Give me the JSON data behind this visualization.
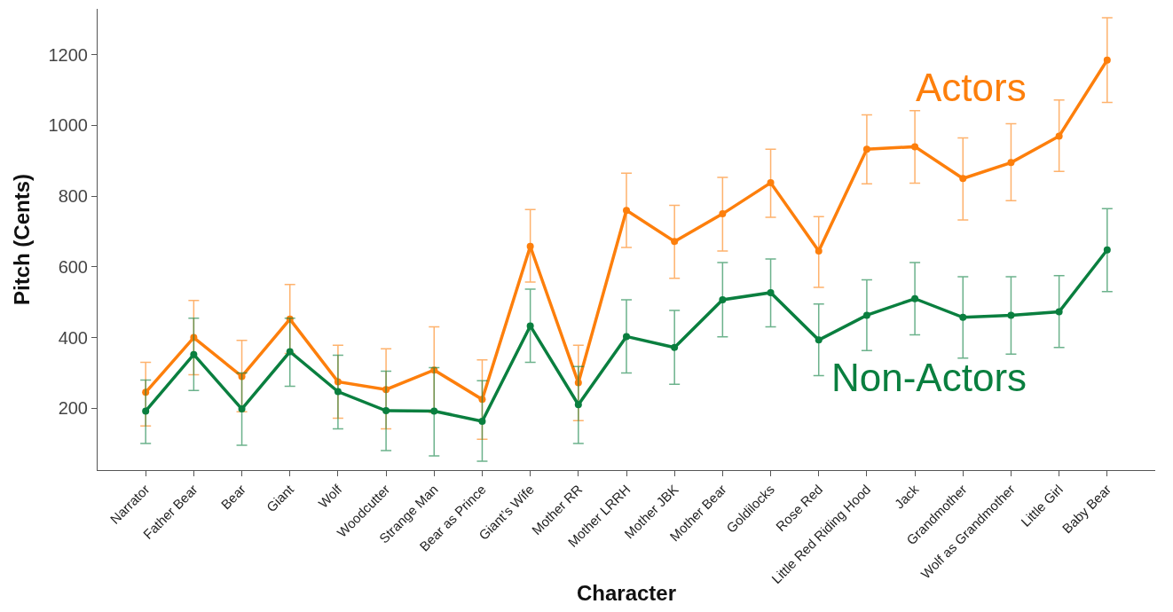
{
  "chart_data": {
    "type": "line",
    "xlabel": "Character",
    "ylabel": "Pitch (Cents)",
    "categories": [
      "Narrator",
      "Father Bear",
      "Bear",
      "Giant",
      "Wolf",
      "Woodcutter",
      "Strange Man",
      "Bear as Prince",
      "Giant’s Wife",
      "Mother RR",
      "Mother LRRH",
      "Mother JBK",
      "Mother Bear",
      "Goldilocks",
      "Rose Red",
      "Little Red Riding Hood",
      "Jack",
      "Grandmother",
      "Wolf as Grandmother",
      "Little Girl",
      "Baby Bear"
    ],
    "series": [
      {
        "name": "Actors",
        "color": "#fd7f0c",
        "values": [
          245,
          400,
          290,
          452,
          275,
          253,
          308,
          225,
          658,
          272,
          760,
          672,
          750,
          838,
          645,
          933,
          940,
          850,
          895,
          970,
          1185
        ],
        "errors": [
          [
            150,
            330
          ],
          [
            295,
            505
          ],
          [
            190,
            392
          ],
          [
            355,
            550
          ],
          [
            172,
            378
          ],
          [
            142,
            368
          ],
          [
            188,
            430
          ],
          [
            112,
            337
          ],
          [
            557,
            762
          ],
          [
            165,
            378
          ],
          [
            655,
            865
          ],
          [
            568,
            774
          ],
          [
            645,
            853
          ],
          [
            740,
            933
          ],
          [
            542,
            742
          ],
          [
            835,
            1030
          ],
          [
            837,
            1042
          ],
          [
            733,
            965
          ],
          [
            787,
            1005
          ],
          [
            870,
            1072
          ],
          [
            1065,
            1305
          ]
        ]
      },
      {
        "name": "Non-Actors",
        "color": "#0a7f3f",
        "values": [
          192,
          352,
          198,
          360,
          247,
          193,
          192,
          163,
          433,
          210,
          403,
          372,
          507,
          527,
          393,
          463,
          510,
          457,
          463,
          473,
          648
        ],
        "errors": [
          [
            100,
            280
          ],
          [
            250,
            455
          ],
          [
            95,
            300
          ],
          [
            262,
            455
          ],
          [
            142,
            350
          ],
          [
            80,
            305
          ],
          [
            65,
            315
          ],
          [
            50,
            278
          ],
          [
            330,
            537
          ],
          [
            100,
            318
          ],
          [
            300,
            507
          ],
          [
            268,
            477
          ],
          [
            402,
            612
          ],
          [
            430,
            622
          ],
          [
            292,
            495
          ],
          [
            363,
            563
          ],
          [
            408,
            612
          ],
          [
            342,
            572
          ],
          [
            353,
            572
          ],
          [
            372,
            575
          ],
          [
            530,
            765
          ]
        ]
      }
    ],
    "ylim": [
      25,
      1330
    ],
    "yticks": [
      200,
      400,
      600,
      800,
      1000,
      1200
    ],
    "grid": false,
    "legend": false,
    "marker": "circle",
    "line_style": "solid"
  }
}
